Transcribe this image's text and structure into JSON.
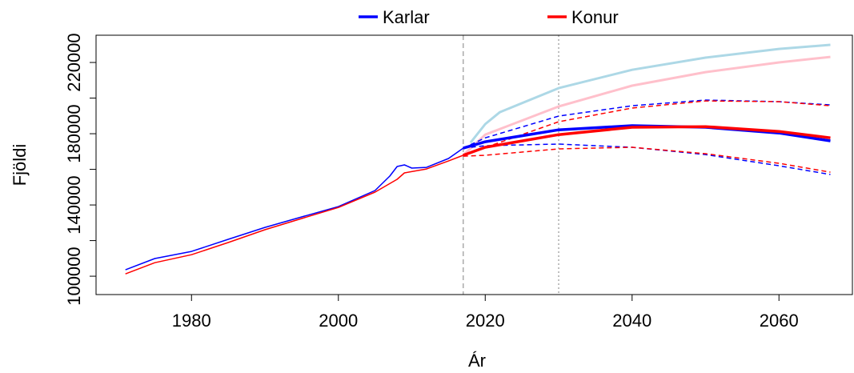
{
  "chart_data": {
    "type": "line",
    "xlabel": "Ár",
    "ylabel": "Fjöldi",
    "legend": [
      {
        "name": "Karlar",
        "color": "#0000ff"
      },
      {
        "name": "Konur",
        "color": "#ff0000"
      }
    ],
    "legend_position": "top",
    "xlim": [
      1967,
      2070
    ],
    "xticks": [
      1980,
      2000,
      2020,
      2040,
      2060
    ],
    "ylim": [
      89700,
      235300
    ],
    "yticks": [
      100000,
      120000,
      140000,
      160000,
      180000,
      200000,
      220000
    ],
    "vlines": [
      2017,
      2030
    ],
    "series": [
      {
        "color": "#add8e6",
        "width": 3,
        "dash": false,
        "x": [
          2018,
          2020,
          2022,
          2030,
          2040,
          2050,
          2060,
          2067
        ],
        "values": [
          175000,
          185400,
          192100,
          205600,
          215900,
          222700,
          227600,
          229900
        ]
      },
      {
        "color": "#ffc0cb",
        "width": 3,
        "dash": false,
        "x": [
          2017,
          2020,
          2030,
          2040,
          2050,
          2060,
          2067
        ],
        "values": [
          167900,
          179500,
          195300,
          207000,
          214600,
          220000,
          223100
        ]
      },
      {
        "color": "#0000ff",
        "width": 1.5,
        "dash": false,
        "x": [
          1971,
          1975,
          1980,
          1985,
          1990,
          1995,
          2000,
          2005,
          2007,
          2008,
          2009,
          2010,
          2012,
          2015,
          2017
        ],
        "values": [
          103600,
          109900,
          113900,
          120700,
          127400,
          133300,
          139100,
          148100,
          156200,
          161600,
          162500,
          160700,
          161100,
          166100,
          171900
        ]
      },
      {
        "color": "#ff0000",
        "width": 1.5,
        "dash": false,
        "x": [
          1971,
          1975,
          1980,
          1985,
          1990,
          1995,
          2000,
          2005,
          2008,
          2009,
          2012,
          2015,
          2017
        ],
        "values": [
          101300,
          107600,
          112100,
          118900,
          126100,
          132400,
          138600,
          147200,
          154400,
          158000,
          160200,
          164700,
          167900
        ]
      },
      {
        "color": "#0000ff",
        "width": 1.5,
        "dash": true,
        "x": [
          2017,
          2020,
          2030,
          2040,
          2050,
          2060,
          2067
        ],
        "values": [
          171900,
          177700,
          189900,
          195700,
          198900,
          198000,
          196200
        ]
      },
      {
        "color": "#ff0000",
        "width": 1.5,
        "dash": true,
        "x": [
          2017,
          2030,
          2040,
          2050,
          2060,
          2067
        ],
        "values": [
          167900,
          186700,
          194400,
          198400,
          198000,
          195700
        ]
      },
      {
        "color": "#0000ff",
        "width": 1.5,
        "dash": true,
        "x": [
          2017,
          2020,
          2030,
          2040,
          2050,
          2060,
          2067
        ],
        "values": [
          171900,
          173300,
          174200,
          172400,
          168300,
          162000,
          157100
        ]
      },
      {
        "color": "#ff0000",
        "width": 1.5,
        "dash": true,
        "x": [
          2017,
          2020,
          2030,
          2040,
          2050,
          2060,
          2067
        ],
        "values": [
          167400,
          167900,
          171500,
          172400,
          168800,
          163400,
          158400
        ]
      },
      {
        "color": "#0000ff",
        "width": 3.5,
        "dash": false,
        "x": [
          2017,
          2020,
          2030,
          2040,
          2050,
          2060,
          2067
        ],
        "values": [
          171900,
          175500,
          182200,
          184500,
          183600,
          180400,
          176000
        ]
      },
      {
        "color": "#ff0000",
        "width": 3.5,
        "dash": false,
        "x": [
          2017,
          2020,
          2030,
          2040,
          2050,
          2060,
          2067
        ],
        "values": [
          167900,
          172400,
          179500,
          183600,
          184000,
          181300,
          177700
        ]
      }
    ]
  }
}
